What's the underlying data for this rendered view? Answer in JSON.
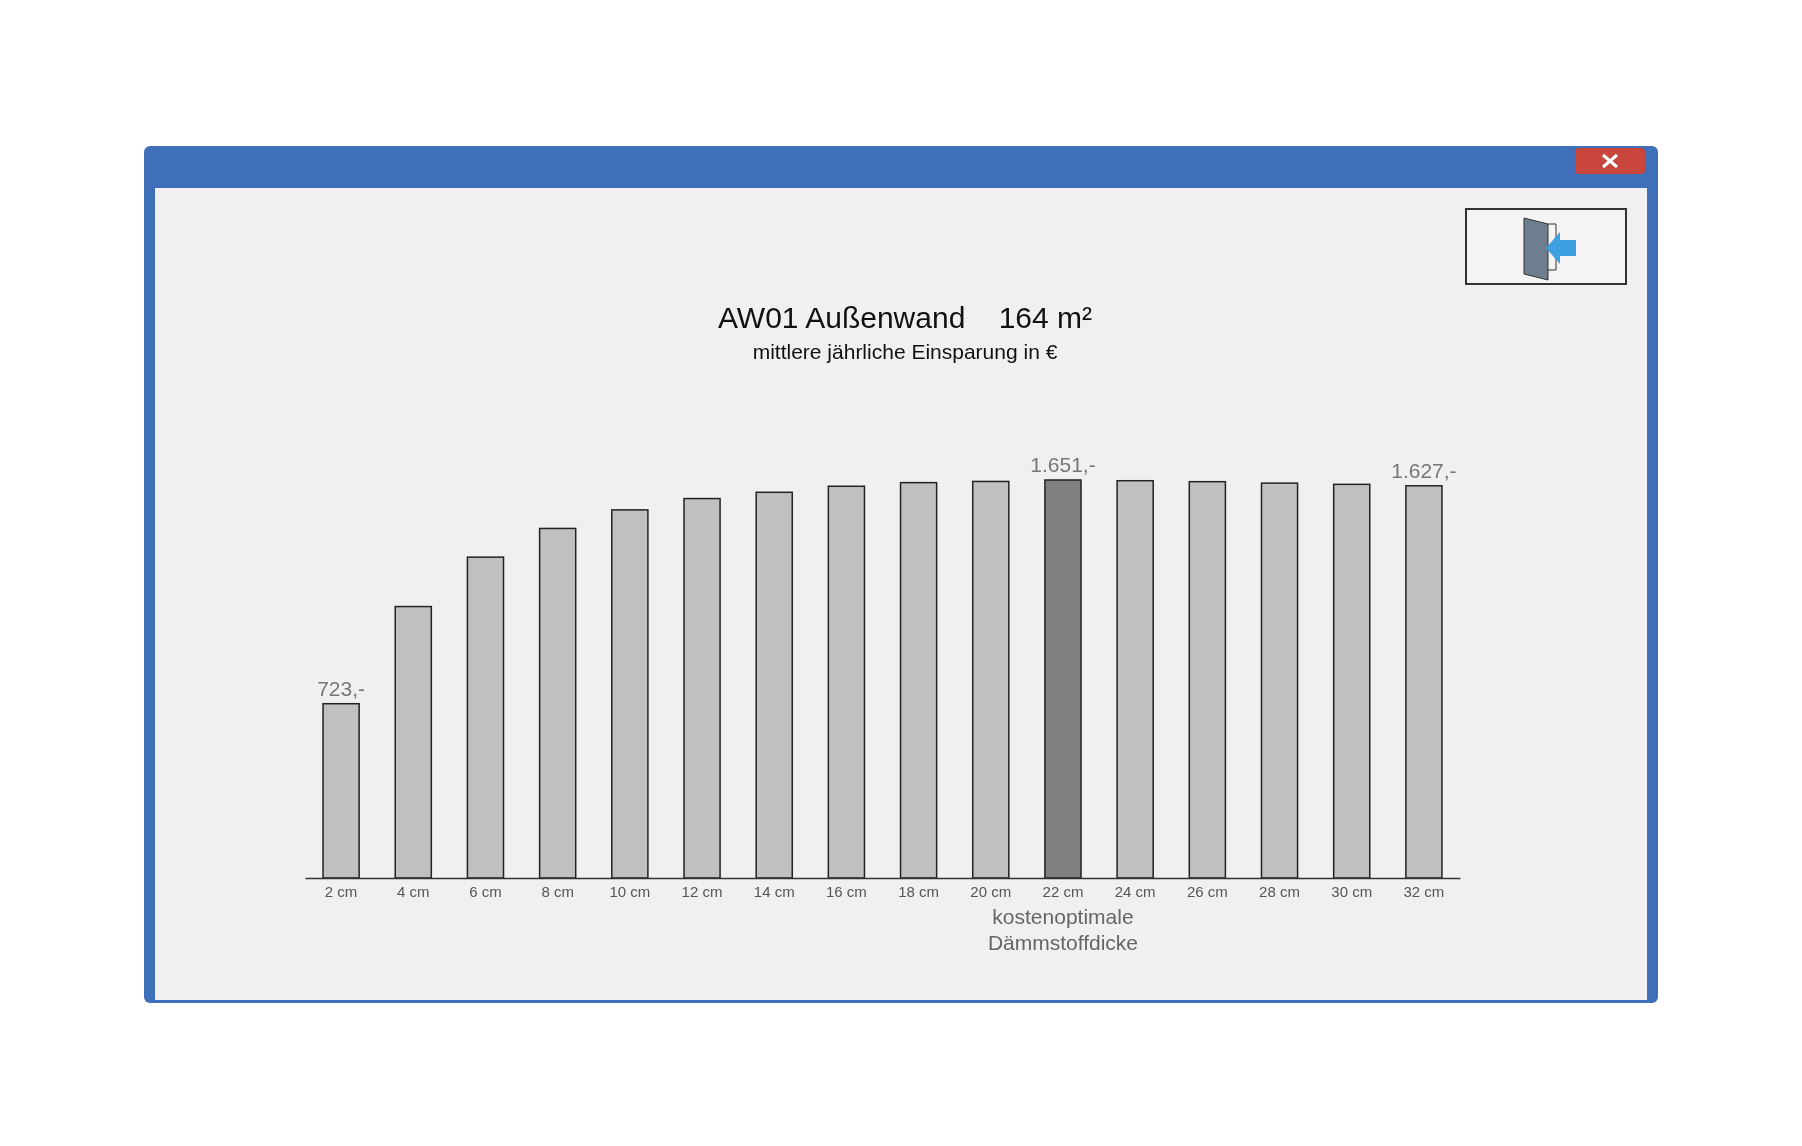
{
  "chart_data": {
    "type": "bar",
    "title": "AW01 Außenwand    164 m²",
    "subtitle": "mittlere jährliche Einsparung in €",
    "categories": [
      "2 cm",
      "4 cm",
      "6 cm",
      "8 cm",
      "10 cm",
      "12 cm",
      "14 cm",
      "16 cm",
      "18 cm",
      "20 cm",
      "22 cm",
      "24 cm",
      "26 cm",
      "28 cm",
      "30 cm",
      "32 cm"
    ],
    "values": [
      723,
      1126,
      1331,
      1450,
      1527,
      1574,
      1600,
      1625,
      1640,
      1645,
      1651,
      1648,
      1644,
      1638,
      1633,
      1627
    ],
    "value_labels": [
      "723,-",
      null,
      null,
      null,
      null,
      null,
      null,
      null,
      null,
      null,
      "1.651,-",
      null,
      null,
      null,
      null,
      "1.627,-"
    ],
    "colors": [
      "#c0c0c0",
      "#c0c0c0",
      "#c0c0c0",
      "#c0c0c0",
      "#c0c0c0",
      "#c0c0c0",
      "#c0c0c0",
      "#c0c0c0",
      "#c0c0c0",
      "#c0c0c0",
      "#808080",
      "#c0c0c0",
      "#c0c0c0",
      "#c0c0c0",
      "#c0c0c0",
      "#c0c0c0"
    ],
    "annotations": [
      "kostenoptimale\nDämmstoffdicke"
    ]
  }
}
